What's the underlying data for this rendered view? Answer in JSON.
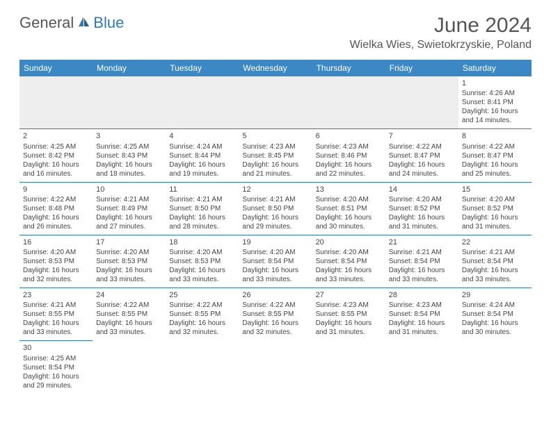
{
  "logo": {
    "text1": "General",
    "text2": "Blue"
  },
  "title": "June 2024",
  "location": "Wielka Wies, Swietokrzyskie, Poland",
  "colors": {
    "header_bg": "#3b88c4",
    "accent": "#2a7bbf",
    "text": "#444444",
    "title_text": "#555555",
    "empty_bg": "#eeeeee"
  },
  "days_of_week": [
    "Sunday",
    "Monday",
    "Tuesday",
    "Wednesday",
    "Thursday",
    "Friday",
    "Saturday"
  ],
  "weeks": [
    [
      null,
      null,
      null,
      null,
      null,
      null,
      {
        "d": "1",
        "sr": "Sunrise: 4:26 AM",
        "ss": "Sunset: 8:41 PM",
        "dl1": "Daylight: 16 hours",
        "dl2": "and 14 minutes."
      }
    ],
    [
      {
        "d": "2",
        "sr": "Sunrise: 4:25 AM",
        "ss": "Sunset: 8:42 PM",
        "dl1": "Daylight: 16 hours",
        "dl2": "and 16 minutes."
      },
      {
        "d": "3",
        "sr": "Sunrise: 4:25 AM",
        "ss": "Sunset: 8:43 PM",
        "dl1": "Daylight: 16 hours",
        "dl2": "and 18 minutes."
      },
      {
        "d": "4",
        "sr": "Sunrise: 4:24 AM",
        "ss": "Sunset: 8:44 PM",
        "dl1": "Daylight: 16 hours",
        "dl2": "and 19 minutes."
      },
      {
        "d": "5",
        "sr": "Sunrise: 4:23 AM",
        "ss": "Sunset: 8:45 PM",
        "dl1": "Daylight: 16 hours",
        "dl2": "and 21 minutes."
      },
      {
        "d": "6",
        "sr": "Sunrise: 4:23 AM",
        "ss": "Sunset: 8:46 PM",
        "dl1": "Daylight: 16 hours",
        "dl2": "and 22 minutes."
      },
      {
        "d": "7",
        "sr": "Sunrise: 4:22 AM",
        "ss": "Sunset: 8:47 PM",
        "dl1": "Daylight: 16 hours",
        "dl2": "and 24 minutes."
      },
      {
        "d": "8",
        "sr": "Sunrise: 4:22 AM",
        "ss": "Sunset: 8:47 PM",
        "dl1": "Daylight: 16 hours",
        "dl2": "and 25 minutes."
      }
    ],
    [
      {
        "d": "9",
        "sr": "Sunrise: 4:22 AM",
        "ss": "Sunset: 8:48 PM",
        "dl1": "Daylight: 16 hours",
        "dl2": "and 26 minutes."
      },
      {
        "d": "10",
        "sr": "Sunrise: 4:21 AM",
        "ss": "Sunset: 8:49 PM",
        "dl1": "Daylight: 16 hours",
        "dl2": "and 27 minutes."
      },
      {
        "d": "11",
        "sr": "Sunrise: 4:21 AM",
        "ss": "Sunset: 8:50 PM",
        "dl1": "Daylight: 16 hours",
        "dl2": "and 28 minutes."
      },
      {
        "d": "12",
        "sr": "Sunrise: 4:21 AM",
        "ss": "Sunset: 8:50 PM",
        "dl1": "Daylight: 16 hours",
        "dl2": "and 29 minutes."
      },
      {
        "d": "13",
        "sr": "Sunrise: 4:20 AM",
        "ss": "Sunset: 8:51 PM",
        "dl1": "Daylight: 16 hours",
        "dl2": "and 30 minutes."
      },
      {
        "d": "14",
        "sr": "Sunrise: 4:20 AM",
        "ss": "Sunset: 8:52 PM",
        "dl1": "Daylight: 16 hours",
        "dl2": "and 31 minutes."
      },
      {
        "d": "15",
        "sr": "Sunrise: 4:20 AM",
        "ss": "Sunset: 8:52 PM",
        "dl1": "Daylight: 16 hours",
        "dl2": "and 31 minutes."
      }
    ],
    [
      {
        "d": "16",
        "sr": "Sunrise: 4:20 AM",
        "ss": "Sunset: 8:53 PM",
        "dl1": "Daylight: 16 hours",
        "dl2": "and 32 minutes."
      },
      {
        "d": "17",
        "sr": "Sunrise: 4:20 AM",
        "ss": "Sunset: 8:53 PM",
        "dl1": "Daylight: 16 hours",
        "dl2": "and 33 minutes."
      },
      {
        "d": "18",
        "sr": "Sunrise: 4:20 AM",
        "ss": "Sunset: 8:53 PM",
        "dl1": "Daylight: 16 hours",
        "dl2": "and 33 minutes."
      },
      {
        "d": "19",
        "sr": "Sunrise: 4:20 AM",
        "ss": "Sunset: 8:54 PM",
        "dl1": "Daylight: 16 hours",
        "dl2": "and 33 minutes."
      },
      {
        "d": "20",
        "sr": "Sunrise: 4:20 AM",
        "ss": "Sunset: 8:54 PM",
        "dl1": "Daylight: 16 hours",
        "dl2": "and 33 minutes."
      },
      {
        "d": "21",
        "sr": "Sunrise: 4:21 AM",
        "ss": "Sunset: 8:54 PM",
        "dl1": "Daylight: 16 hours",
        "dl2": "and 33 minutes."
      },
      {
        "d": "22",
        "sr": "Sunrise: 4:21 AM",
        "ss": "Sunset: 8:54 PM",
        "dl1": "Daylight: 16 hours",
        "dl2": "and 33 minutes."
      }
    ],
    [
      {
        "d": "23",
        "sr": "Sunrise: 4:21 AM",
        "ss": "Sunset: 8:55 PM",
        "dl1": "Daylight: 16 hours",
        "dl2": "and 33 minutes."
      },
      {
        "d": "24",
        "sr": "Sunrise: 4:22 AM",
        "ss": "Sunset: 8:55 PM",
        "dl1": "Daylight: 16 hours",
        "dl2": "and 33 minutes."
      },
      {
        "d": "25",
        "sr": "Sunrise: 4:22 AM",
        "ss": "Sunset: 8:55 PM",
        "dl1": "Daylight: 16 hours",
        "dl2": "and 32 minutes."
      },
      {
        "d": "26",
        "sr": "Sunrise: 4:22 AM",
        "ss": "Sunset: 8:55 PM",
        "dl1": "Daylight: 16 hours",
        "dl2": "and 32 minutes."
      },
      {
        "d": "27",
        "sr": "Sunrise: 4:23 AM",
        "ss": "Sunset: 8:55 PM",
        "dl1": "Daylight: 16 hours",
        "dl2": "and 31 minutes."
      },
      {
        "d": "28",
        "sr": "Sunrise: 4:23 AM",
        "ss": "Sunset: 8:54 PM",
        "dl1": "Daylight: 16 hours",
        "dl2": "and 31 minutes."
      },
      {
        "d": "29",
        "sr": "Sunrise: 4:24 AM",
        "ss": "Sunset: 8:54 PM",
        "dl1": "Daylight: 16 hours",
        "dl2": "and 30 minutes."
      }
    ],
    [
      {
        "d": "30",
        "sr": "Sunrise: 4:25 AM",
        "ss": "Sunset: 8:54 PM",
        "dl1": "Daylight: 16 hours",
        "dl2": "and 29 minutes."
      },
      null,
      null,
      null,
      null,
      null,
      null
    ]
  ]
}
